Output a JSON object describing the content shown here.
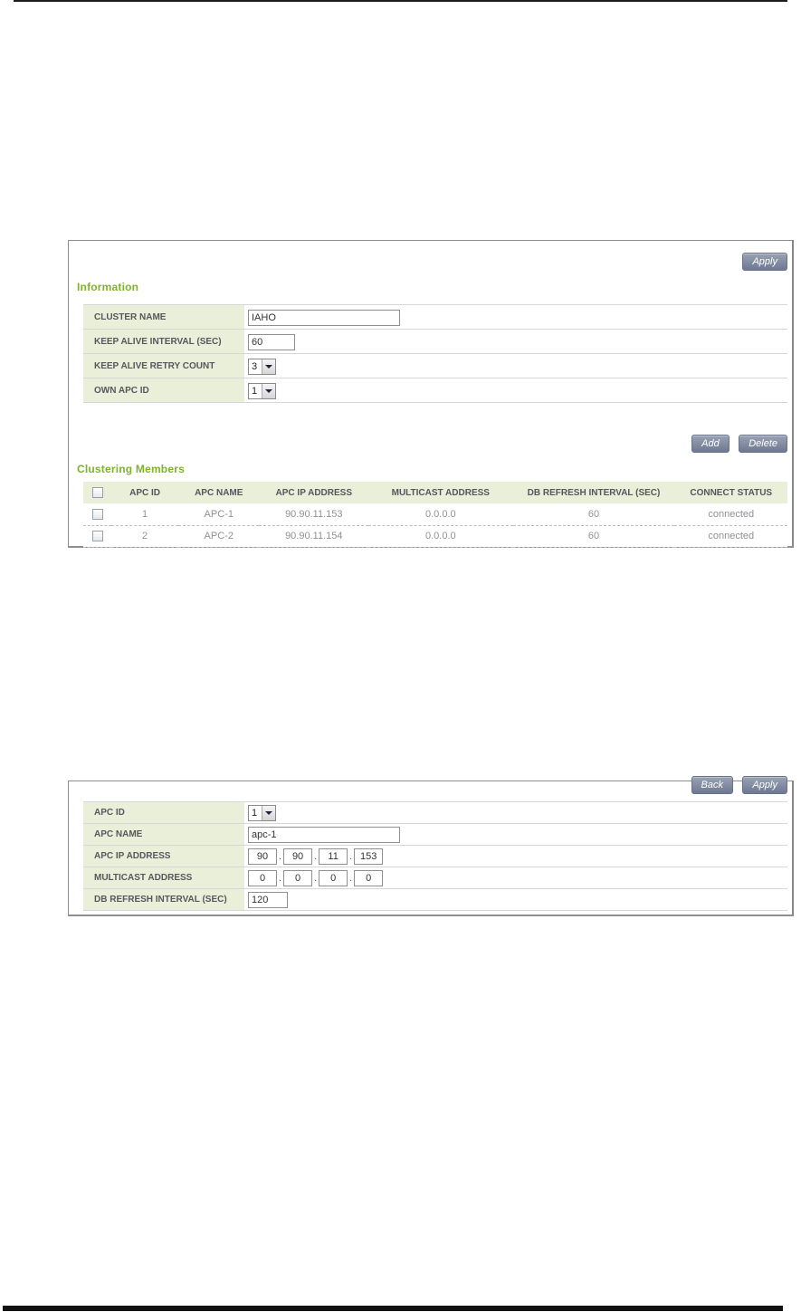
{
  "colors": {
    "accent_green_heading": "#7fb22c",
    "label_bg_green": "#e9efd9",
    "button_gradient_top": "#9aa3b4",
    "button_gradient_bottom": "#6e7890",
    "label_text": "#55585c",
    "table_text": "#8f9196"
  },
  "panel_cluster": {
    "apply_button": "Apply",
    "information_heading": "Information",
    "form_rows": [
      {
        "label": "CLUSTER NAME",
        "type": "text",
        "value": "IAHO"
      },
      {
        "label": "KEEP ALIVE INTERVAL (SEC)",
        "type": "text",
        "value": "60"
      },
      {
        "label": "KEEP ALIVE RETRY COUNT",
        "type": "select",
        "value": "3"
      },
      {
        "label": "OWN APC ID",
        "type": "select",
        "value": "1"
      }
    ],
    "add_button": "Add",
    "delete_button": "Delete",
    "members_heading": "Clustering Members",
    "members_table": {
      "columns": [
        "APC ID",
        "APC NAME",
        "APC IP ADDRESS",
        "MULTICAST ADDRESS",
        "DB REFRESH INTERVAL (SEC)",
        "CONNECT STATUS"
      ],
      "rows": [
        {
          "apc_id": "1",
          "apc_name": "APC-1",
          "apc_ip": "90.90.11.153",
          "multicast": "0.0.0.0",
          "db_refresh": "60",
          "connect_status": "connected"
        },
        {
          "apc_id": "2",
          "apc_name": "APC-2",
          "apc_ip": "90.90.11.154",
          "multicast": "0.0.0.0",
          "db_refresh": "60",
          "connect_status": "connected"
        }
      ]
    }
  },
  "panel_member": {
    "back_button": "Back",
    "apply_button": "Apply",
    "ip_dot": ".",
    "rows": [
      {
        "label": "APC ID",
        "type": "select",
        "value": "1"
      },
      {
        "label": "APC NAME",
        "type": "text",
        "value": "apc-1"
      },
      {
        "label": "APC IP ADDRESS",
        "type": "ip",
        "value": [
          "90",
          "90",
          "11",
          "153"
        ]
      },
      {
        "label": "MULTICAST ADDRESS",
        "type": "ip",
        "value": [
          "0",
          "0",
          "0",
          "0"
        ]
      },
      {
        "label": "DB REFRESH INTERVAL (SEC)",
        "type": "text",
        "value": "120"
      }
    ]
  }
}
